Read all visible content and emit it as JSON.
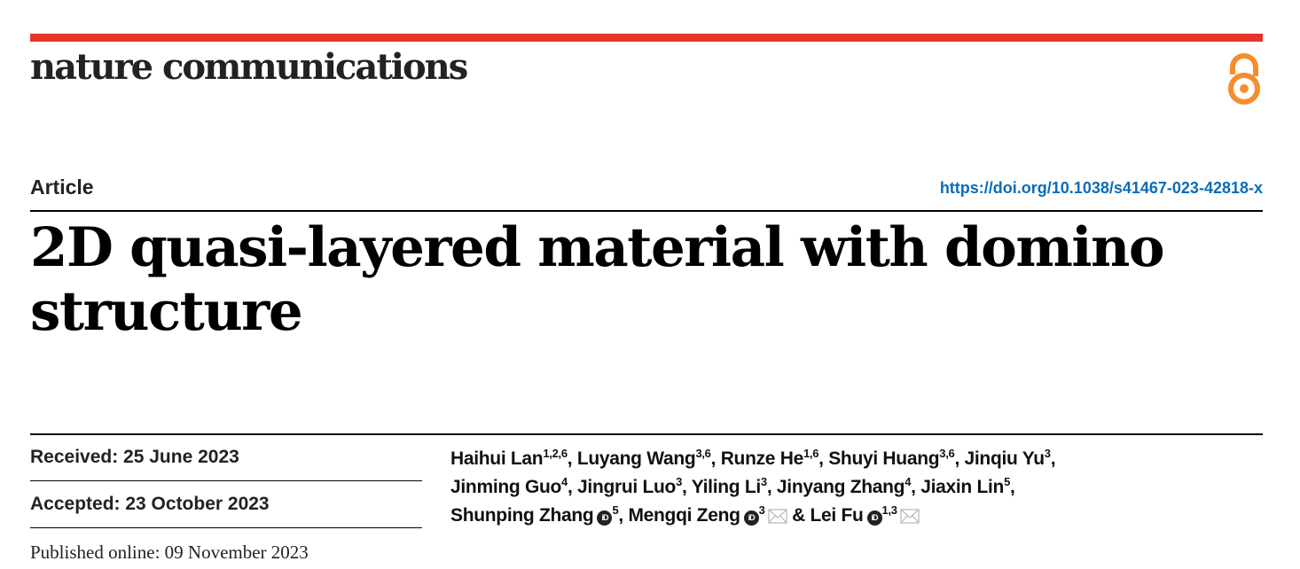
{
  "header": {
    "journal": "nature communications",
    "brand_color": "#e5362a",
    "open_access_icon": "open-access-lock-icon",
    "open_access_color": "#f68d2e"
  },
  "article": {
    "type": "Article",
    "doi": "https://doi.org/10.1038/s41467-023-42818-x",
    "title": "2D quasi-layered material with domino structure"
  },
  "dates": {
    "received": "Received: 25 June 2023",
    "accepted": "Accepted: 23 October 2023",
    "published": "Published online: 09 November 2023"
  },
  "authors": [
    {
      "name": "Haihui Lan",
      "aff": "1,2,6",
      "orcid": false,
      "email": false
    },
    {
      "name": "Luyang Wang",
      "aff": "3,6",
      "orcid": false,
      "email": false
    },
    {
      "name": "Runze He",
      "aff": "1,6",
      "orcid": false,
      "email": false
    },
    {
      "name": "Shuyi Huang",
      "aff": "3,6",
      "orcid": false,
      "email": false
    },
    {
      "name": "Jinqiu Yu",
      "aff": "3",
      "orcid": false,
      "email": false
    },
    {
      "name": "Jinming Guo",
      "aff": "4",
      "orcid": false,
      "email": false
    },
    {
      "name": "Jingrui Luo",
      "aff": "3",
      "orcid": false,
      "email": false
    },
    {
      "name": "Yiling Li",
      "aff": "3",
      "orcid": false,
      "email": false
    },
    {
      "name": "Jinyang Zhang",
      "aff": "4",
      "orcid": false,
      "email": false
    },
    {
      "name": "Jiaxin Lin",
      "aff": "5",
      "orcid": false,
      "email": false
    },
    {
      "name": "Shunping Zhang",
      "aff": "5",
      "orcid": true,
      "email": false
    },
    {
      "name": "Mengqi Zeng",
      "aff": "3",
      "orcid": true,
      "email": true
    },
    {
      "name": "Lei Fu",
      "aff": "1,3",
      "orcid": true,
      "email": true
    }
  ],
  "author_separator": ", ",
  "author_last_separator": " & ",
  "orcid_label": "iD"
}
